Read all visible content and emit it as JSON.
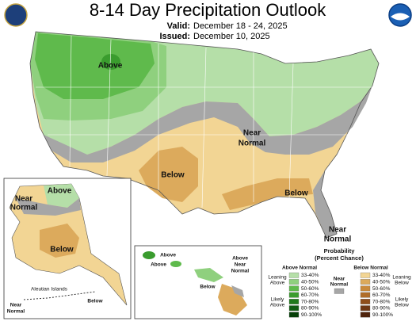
{
  "header": {
    "title": "8-14 Day Precipitation Outlook",
    "valid_label": "Valid:",
    "valid": "December 18 - 24, 2025",
    "issued_label": "Issued:",
    "issued": "December 10, 2025"
  },
  "map_labels": {
    "conus": {
      "above": "Above",
      "near": [
        "Near",
        "Normal"
      ],
      "below_central": "Below",
      "below_southeast": "Below",
      "near_florida": [
        "Near",
        "Normal"
      ]
    },
    "alaska": {
      "above": "Above",
      "near": [
        "Near",
        "Normal"
      ],
      "below": "Below",
      "aleutian": "Aleutian Islands",
      "below_aleutian": "Below",
      "near_aleutian": [
        "Near",
        "Normal"
      ]
    },
    "hawaii": {
      "above_west": "Above",
      "above_central": "Above",
      "below": "Below",
      "above_near_east": [
        "Above",
        "Near",
        "Normal"
      ]
    }
  },
  "legend": {
    "title": [
      "Probability",
      "(Percent Chance)"
    ],
    "above": {
      "heading": "Above Normal",
      "leaning": [
        "Leaning",
        "Above"
      ],
      "likely": [
        "Likely",
        "Above"
      ],
      "levels": [
        "33-40%",
        "40-50%",
        "50-60%",
        "60-70%",
        "70-80%",
        "80-90%",
        "90-100%"
      ],
      "colors": [
        "#b5dfa8",
        "#8fd07e",
        "#5fba4c",
        "#3a9c2e",
        "#1f7a1c",
        "#0f5c12",
        "#064008"
      ]
    },
    "near": {
      "heading": [
        "Near",
        "Normal"
      ],
      "color": "#a6a6a6"
    },
    "below": {
      "heading": "Below Normal",
      "leaning": [
        "Leaning",
        "Below"
      ],
      "likely": [
        "Likely",
        "Below"
      ],
      "levels": [
        "33-40%",
        "40-50%",
        "50-60%",
        "60-70%",
        "70-80%",
        "80-90%",
        "90-100%"
      ],
      "colors": [
        "#f2d594",
        "#dcaa5c",
        "#c98a3c",
        "#b06d2a",
        "#8f4e1b",
        "#6e3714",
        "#4e230c"
      ]
    }
  }
}
